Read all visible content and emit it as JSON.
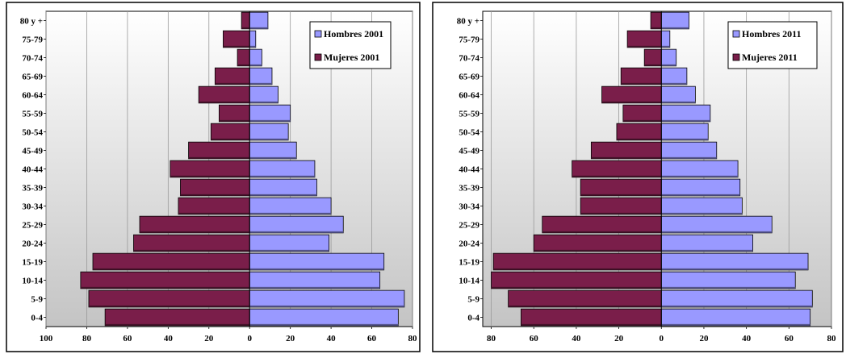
{
  "chart_data": [
    {
      "type": "bar",
      "orientation": "horizontal",
      "style": "population-pyramid",
      "categories": [
        "0-4",
        "5-9",
        "10-14",
        "15-19",
        "20-24",
        "25-29",
        "30-34",
        "35-39",
        "40-44",
        "45-49",
        "50-54",
        "55-59",
        "60-64",
        "65-69",
        "70-74",
        "75-79",
        "80 y +"
      ],
      "series": [
        {
          "name": "Hombres 2001",
          "color": "#9999ff",
          "values": [
            73,
            76,
            64,
            66,
            39,
            46,
            40,
            33,
            32,
            23,
            19,
            20,
            14,
            11,
            6,
            3,
            9
          ]
        },
        {
          "name": "Mujeres 2001",
          "color": "#7a1e4a",
          "values": [
            71,
            79,
            83,
            77,
            57,
            54,
            35,
            34,
            39,
            30,
            19,
            15,
            25,
            17,
            6,
            13,
            4
          ]
        }
      ],
      "xlim": [
        -100,
        80
      ],
      "xticks": [
        -100,
        -80,
        -60,
        -40,
        -20,
        0,
        20,
        40,
        60,
        80
      ],
      "xtick_labels": [
        "100",
        "80",
        "60",
        "40",
        "20",
        "0",
        "20",
        "40",
        "60",
        "80"
      ],
      "legend": "top-right",
      "grid": true
    },
    {
      "type": "bar",
      "orientation": "horizontal",
      "style": "population-pyramid",
      "categories": [
        "0-4",
        "5-9",
        "10-14",
        "15-19",
        "20-24",
        "25-29",
        "30-34",
        "35-39",
        "40-44",
        "45-49",
        "50-54",
        "55-59",
        "60-64",
        "65-69",
        "70-74",
        "75-79",
        "80 y +"
      ],
      "series": [
        {
          "name": "Hombres 2011",
          "color": "#9999ff",
          "values": [
            70,
            71,
            63,
            69,
            43,
            52,
            38,
            37,
            36,
            26,
            22,
            23,
            16,
            12,
            7,
            4,
            13
          ]
        },
        {
          "name": "Mujeres 2011",
          "color": "#7a1e4a",
          "values": [
            66,
            72,
            80,
            79,
            60,
            56,
            38,
            38,
            42,
            33,
            21,
            18,
            28,
            19,
            8,
            16,
            5
          ]
        }
      ],
      "xlim": [
        -84,
        80
      ],
      "xticks": [
        -80,
        -60,
        -40,
        -20,
        0,
        20,
        40,
        60,
        80
      ],
      "xtick_labels": [
        "80",
        "60",
        "40",
        "20",
        "0",
        "20",
        "40",
        "60",
        "80"
      ],
      "legend": "top-right",
      "grid": true
    }
  ]
}
